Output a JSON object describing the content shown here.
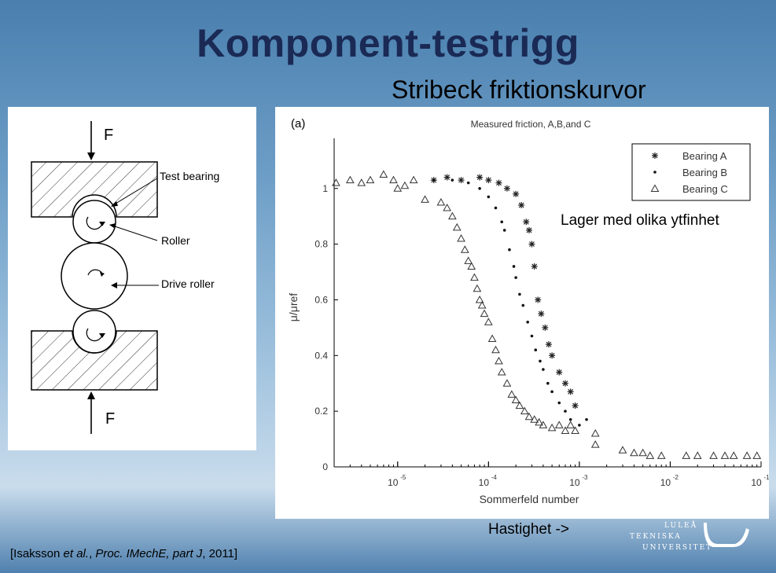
{
  "slide": {
    "title": "Komponent-testrigg",
    "subtitle": "Stribeck friktionskurvor",
    "note": "Lager med olika ytfinhet",
    "speed_label": "Hastighet ->",
    "citation": {
      "prefix": "[Isaksson ",
      "etal": "et al.",
      "mid": ", ",
      "journal": "Proc. IMechE, part J",
      "suffix": ", 2011]"
    },
    "logo": {
      "line1": "LULEÅ",
      "line2": "TEKNISKA",
      "line3": "UNIVERSITET"
    }
  },
  "diagram": {
    "force_top": "F",
    "force_bottom": "F",
    "labels": {
      "test_bearing": "Test bearing",
      "roller": "Roller",
      "drive_roller": "Drive roller"
    }
  },
  "chart_data": {
    "type": "scatter",
    "panel_label": "(a)",
    "title": "Measured friction, A,B,and C",
    "xlabel": "Sommerfeld number",
    "ylabel": "μ/μref",
    "x_scale": "log",
    "xlim": [
      2e-06,
      0.1
    ],
    "ylim": [
      0,
      1.18
    ],
    "y_ticks": [
      0,
      0.2,
      0.4,
      0.6,
      0.8,
      1
    ],
    "y_tick_labels": [
      "0",
      "0.2",
      "0.4",
      "0.6",
      "0.8",
      "1"
    ],
    "x_ticks": [
      1e-05,
      0.0001,
      0.001,
      0.01,
      0.1
    ],
    "x_tick_labels": [
      {
        "base": "10",
        "exp": "-5"
      },
      {
        "base": "10",
        "exp": "-4"
      },
      {
        "base": "10",
        "exp": "-3"
      },
      {
        "base": "10",
        "exp": "-2"
      },
      {
        "base": "10",
        "exp": "-1"
      }
    ],
    "legend_position": "top-right",
    "grid": false,
    "series": [
      {
        "name": "Bearing A",
        "marker": "star",
        "points": [
          [
            2.5e-05,
            1.03
          ],
          [
            3.5e-05,
            1.04
          ],
          [
            5e-05,
            1.03
          ],
          [
            8e-05,
            1.04
          ],
          [
            0.0001,
            1.03
          ],
          [
            0.00013,
            1.02
          ],
          [
            0.00016,
            1.0
          ],
          [
            0.0002,
            0.98
          ],
          [
            0.00023,
            0.94
          ],
          [
            0.00026,
            0.88
          ],
          [
            0.00028,
            0.85
          ],
          [
            0.0003,
            0.8
          ],
          [
            0.00032,
            0.72
          ],
          [
            0.00035,
            0.6
          ],
          [
            0.00038,
            0.55
          ],
          [
            0.00042,
            0.5
          ],
          [
            0.00046,
            0.44
          ],
          [
            0.0005,
            0.4
          ],
          [
            0.0006,
            0.34
          ],
          [
            0.0007,
            0.3
          ],
          [
            0.0008,
            0.27
          ],
          [
            0.0009,
            0.22
          ]
        ]
      },
      {
        "name": "Bearing B",
        "marker": "dot",
        "points": [
          [
            2.5e-05,
            1.03
          ],
          [
            4e-05,
            1.03
          ],
          [
            6e-05,
            1.02
          ],
          [
            8e-05,
            1.0
          ],
          [
            0.0001,
            0.97
          ],
          [
            0.00012,
            0.93
          ],
          [
            0.00014,
            0.88
          ],
          [
            0.00015,
            0.85
          ],
          [
            0.00017,
            0.78
          ],
          [
            0.00019,
            0.72
          ],
          [
            0.0002,
            0.68
          ],
          [
            0.00022,
            0.62
          ],
          [
            0.00024,
            0.58
          ],
          [
            0.00027,
            0.52
          ],
          [
            0.0003,
            0.47
          ],
          [
            0.00033,
            0.42
          ],
          [
            0.00037,
            0.38
          ],
          [
            0.0004,
            0.35
          ],
          [
            0.00045,
            0.3
          ],
          [
            0.0005,
            0.27
          ],
          [
            0.0006,
            0.23
          ],
          [
            0.0007,
            0.2
          ],
          [
            0.0008,
            0.17
          ],
          [
            0.001,
            0.15
          ],
          [
            0.0012,
            0.17
          ]
        ]
      },
      {
        "name": "Bearing C",
        "marker": "triangle",
        "points": [
          [
            2.1e-06,
            1.02
          ],
          [
            3e-06,
            1.03
          ],
          [
            4e-06,
            1.02
          ],
          [
            5e-06,
            1.03
          ],
          [
            7e-06,
            1.05
          ],
          [
            9e-06,
            1.03
          ],
          [
            1e-05,
            1.0
          ],
          [
            1.2e-05,
            1.01
          ],
          [
            1.5e-05,
            1.03
          ],
          [
            2e-05,
            0.96
          ],
          [
            3e-05,
            0.95
          ],
          [
            3.5e-05,
            0.93
          ],
          [
            4e-05,
            0.9
          ],
          [
            4.5e-05,
            0.86
          ],
          [
            5e-05,
            0.82
          ],
          [
            5.5e-05,
            0.78
          ],
          [
            6e-05,
            0.74
          ],
          [
            6.5e-05,
            0.72
          ],
          [
            7e-05,
            0.68
          ],
          [
            7.5e-05,
            0.64
          ],
          [
            8e-05,
            0.6
          ],
          [
            8.5e-05,
            0.58
          ],
          [
            9e-05,
            0.55
          ],
          [
            0.0001,
            0.52
          ],
          [
            0.00011,
            0.46
          ],
          [
            0.00012,
            0.42
          ],
          [
            0.00013,
            0.38
          ],
          [
            0.00014,
            0.34
          ],
          [
            0.00016,
            0.3
          ],
          [
            0.00018,
            0.26
          ],
          [
            0.0002,
            0.24
          ],
          [
            0.00022,
            0.22
          ],
          [
            0.00025,
            0.2
          ],
          [
            0.00028,
            0.18
          ],
          [
            0.00032,
            0.17
          ],
          [
            0.00036,
            0.16
          ],
          [
            0.0004,
            0.15
          ],
          [
            0.0005,
            0.14
          ],
          [
            0.0006,
            0.15
          ],
          [
            0.0007,
            0.13
          ],
          [
            0.0008,
            0.15
          ],
          [
            0.0009,
            0.13
          ],
          [
            0.0015,
            0.12
          ],
          [
            0.0015,
            0.08
          ],
          [
            0.003,
            0.06
          ],
          [
            0.004,
            0.05
          ],
          [
            0.005,
            0.05
          ],
          [
            0.006,
            0.04
          ],
          [
            0.008,
            0.04
          ],
          [
            0.015,
            0.04
          ],
          [
            0.02,
            0.04
          ],
          [
            0.03,
            0.04
          ],
          [
            0.04,
            0.04
          ],
          [
            0.05,
            0.04
          ],
          [
            0.07,
            0.04
          ],
          [
            0.09,
            0.04
          ]
        ]
      }
    ]
  }
}
